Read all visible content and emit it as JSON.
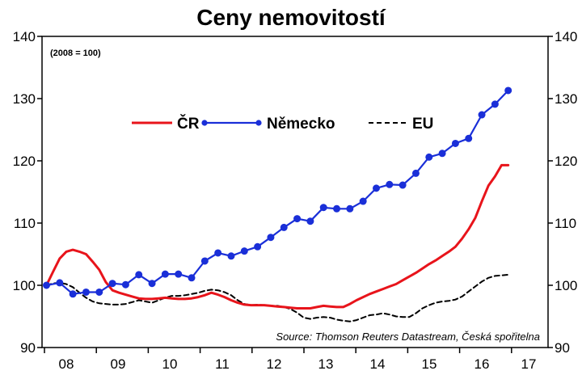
{
  "chart_data": {
    "type": "line",
    "title": "Ceny nemovitostí",
    "index_note": "(2008 = 100)",
    "source": "Source: Thomson Reuters Datastream, Česká spořitelna",
    "x_tick_labels": [
      "08",
      "09",
      "10",
      "11",
      "12",
      "13",
      "14",
      "15",
      "16",
      "17"
    ],
    "y_ticks": [
      90,
      100,
      110,
      120,
      130,
      140
    ],
    "ylim": [
      90,
      140
    ],
    "xlim": [
      0,
      36
    ],
    "grid": false,
    "legend_position": "top-center",
    "dual_y_axis": true,
    "series": [
      {
        "name": "ČR",
        "color": "#e8141b",
        "style": "solid",
        "markers": false,
        "x": [
          0,
          0.5,
          1,
          1.5,
          2,
          2.5,
          3,
          3.5,
          4,
          4.5,
          5,
          5.5,
          6,
          6.5,
          7,
          7.5,
          8,
          8.5,
          9,
          9.5,
          10,
          10.5,
          11,
          11.5,
          12,
          12.5,
          13,
          13.5,
          14,
          14.5,
          15,
          15.5,
          16,
          16.5,
          17,
          17.5,
          18,
          18.5,
          19,
          19.5,
          20,
          20.5,
          21,
          21.5,
          22,
          22.5,
          23,
          23.5,
          24,
          24.5,
          25,
          25.5,
          26,
          26.5,
          27,
          27.5,
          28,
          28.5,
          29,
          29.5,
          30,
          30.5,
          31,
          31.5,
          32,
          32.5,
          33,
          33.5,
          34,
          34.5,
          35
        ],
        "values": [
          100.0,
          102.2,
          104.3,
          105.4,
          105.7,
          105.4,
          105.0,
          103.8,
          102.5,
          100.5,
          99.2,
          98.8,
          98.5,
          98.2,
          97.9,
          97.8,
          97.8,
          97.9,
          98.0,
          97.9,
          97.8,
          97.8,
          97.9,
          98.1,
          98.4,
          98.8,
          98.5,
          98.1,
          97.6,
          97.2,
          96.9,
          96.8,
          96.8,
          96.8,
          96.7,
          96.6,
          96.5,
          96.4,
          96.3,
          96.3,
          96.3,
          96.5,
          96.7,
          96.6,
          96.5,
          96.5,
          97.0,
          97.6,
          98.1,
          98.6,
          99.0,
          99.4,
          99.8,
          100.2,
          100.8,
          101.4,
          102.0,
          102.7,
          103.4,
          104.0,
          104.7,
          105.4,
          106.2,
          107.5,
          109.0,
          110.8,
          113.5,
          116.0,
          117.5,
          119.3,
          119.3
        ]
      },
      {
        "name": "Německo",
        "color": "#1a2fd8",
        "style": "solid",
        "markers": true,
        "x": [
          0,
          1,
          2,
          3,
          4,
          5,
          6,
          7,
          8,
          9,
          10,
          11,
          12,
          13,
          14,
          15,
          16,
          17,
          18,
          19,
          20,
          21,
          22,
          23,
          24,
          25,
          26,
          27,
          28,
          29,
          30,
          31,
          32,
          33,
          34,
          35
        ],
        "values": [
          100.0,
          100.4,
          98.6,
          98.9,
          98.9,
          100.3,
          100.1,
          101.7,
          100.3,
          101.8,
          101.8,
          101.2,
          103.9,
          105.2,
          104.7,
          105.5,
          106.2,
          107.7,
          109.3,
          110.7,
          110.3,
          112.5,
          112.3,
          112.3,
          113.5,
          115.6,
          116.2,
          116.1,
          118.0,
          120.6,
          121.2,
          122.8,
          123.6,
          127.4,
          129.1,
          131.3
        ]
      },
      {
        "name": "EU",
        "color": "#000000",
        "style": "dashed",
        "markers": false,
        "x": [
          0,
          0.5,
          1,
          1.5,
          2,
          2.5,
          3,
          3.5,
          4,
          4.5,
          5,
          5.5,
          6,
          6.5,
          7,
          7.5,
          8,
          8.5,
          9,
          9.5,
          10,
          10.5,
          11,
          11.5,
          12,
          12.5,
          13,
          13.5,
          14,
          14.5,
          15,
          15.5,
          16,
          16.5,
          17,
          17.5,
          18,
          18.5,
          19,
          19.5,
          20,
          20.5,
          21,
          21.5,
          22,
          22.5,
          23,
          23.5,
          24,
          24.5,
          25,
          25.5,
          26,
          26.5,
          27,
          27.5,
          28,
          28.5,
          29,
          29.5,
          30,
          30.5,
          31,
          31.5,
          32,
          32.5,
          33,
          33.5,
          34,
          34.5,
          35
        ],
        "values": [
          100.0,
          100.3,
          100.4,
          100.2,
          99.7,
          98.8,
          98.0,
          97.4,
          97.1,
          97.0,
          96.9,
          96.9,
          97.0,
          97.3,
          97.6,
          97.4,
          97.2,
          97.6,
          98.0,
          98.3,
          98.3,
          98.4,
          98.6,
          98.8,
          99.1,
          99.3,
          99.2,
          98.9,
          98.4,
          97.6,
          97.0,
          96.8,
          96.9,
          96.8,
          96.7,
          96.7,
          96.5,
          96.2,
          95.6,
          94.8,
          94.6,
          94.8,
          94.9,
          94.8,
          94.5,
          94.3,
          94.2,
          94.4,
          94.8,
          95.2,
          95.3,
          95.5,
          95.3,
          95.0,
          94.9,
          94.9,
          95.5,
          96.3,
          96.8,
          97.2,
          97.4,
          97.5,
          97.7,
          98.2,
          99.0,
          99.8,
          100.6,
          101.2,
          101.5,
          101.6,
          101.7
        ]
      }
    ]
  }
}
